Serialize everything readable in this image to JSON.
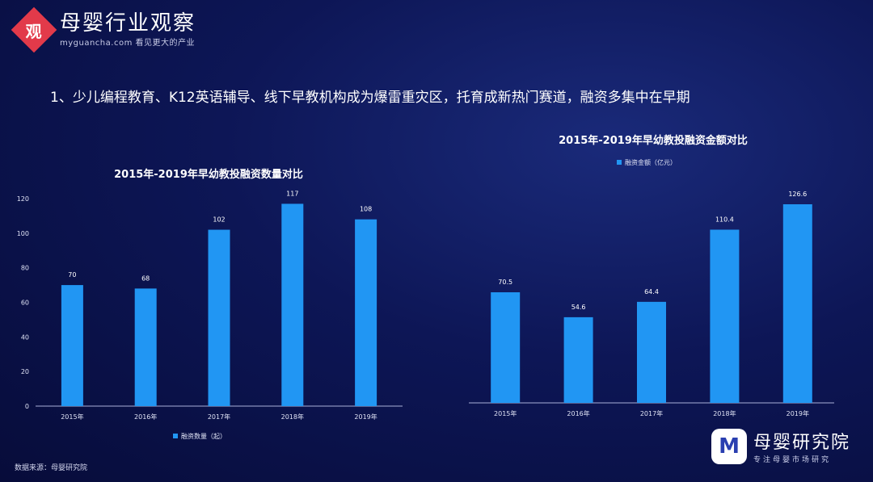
{
  "header": {
    "logo_glyph": "观",
    "logo_title": "母婴行业观察",
    "logo_subtitle": "myguancha.com 看见更大的产业"
  },
  "headline": "1、少儿编程教育、K12英语辅导、线下早教机构成为爆雷重灾区，托育成新热门赛道，融资多集中在早期",
  "colors": {
    "bar": "#2196f3",
    "background": "#0d1656",
    "axis": "#aab0d8"
  },
  "chart_data": [
    {
      "type": "bar",
      "title": "2015年-2019年早幼教投融资数量对比",
      "categories": [
        "2015年",
        "2016年",
        "2017年",
        "2018年",
        "2019年"
      ],
      "series": [
        {
          "name": "融资数量（起）",
          "values": [
            70,
            68,
            102,
            117,
            108
          ]
        }
      ],
      "ylim": [
        0,
        120
      ],
      "yticks": [
        0,
        20,
        40,
        60,
        80,
        100,
        120
      ],
      "legend_position": "bottom"
    },
    {
      "type": "bar",
      "title": "2015年-2019年早幼教投融资金额对比",
      "categories": [
        "2015年",
        "2016年",
        "2017年",
        "2018年",
        "2019年"
      ],
      "series": [
        {
          "name": "融资金额（亿元）",
          "values": [
            70.5,
            54.6,
            64.4,
            110.4,
            126.6
          ]
        }
      ],
      "legend_position": "top"
    }
  ],
  "footer": {
    "source": "数据来源：母婴研究院",
    "brand_glyph": "M",
    "brand_title": "母婴研究院",
    "brand_subtitle": "专注母婴市场研究"
  }
}
